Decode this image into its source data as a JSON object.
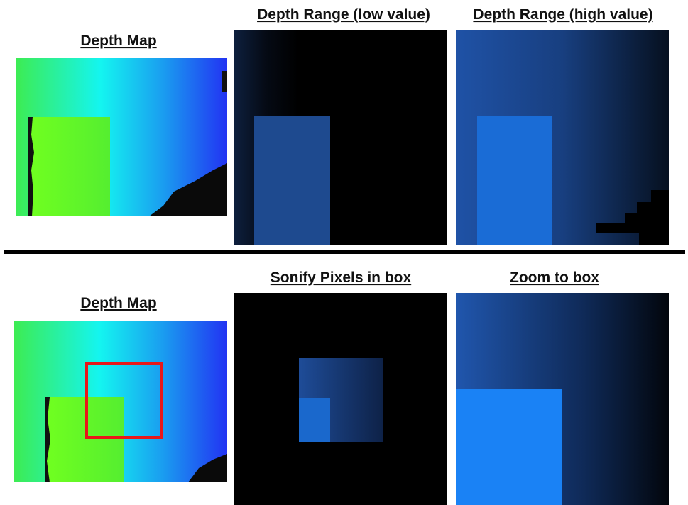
{
  "top_row": {
    "titles": [
      "Depth Map",
      "Depth Range (low value)",
      "Depth Range (high value)"
    ]
  },
  "bottom_row": {
    "titles": [
      "Depth Map",
      "Sonify Pixels in box",
      "Zoom to box"
    ]
  }
}
